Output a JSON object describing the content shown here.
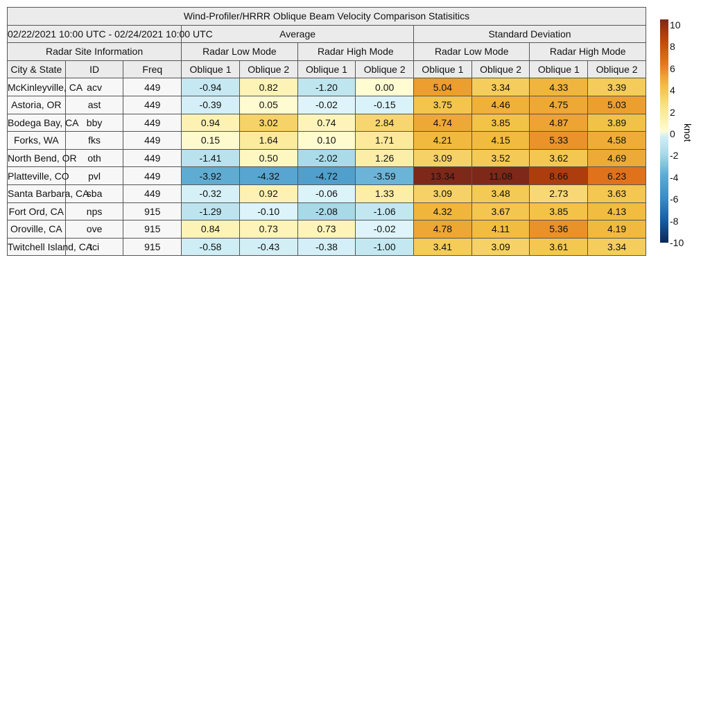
{
  "chart_data": {
    "type": "table",
    "title": "Wind-Profiler/HRRR Oblique Beam Velocity Comparison Statisitics",
    "period": "02/22/2021 10:00 UTC - 02/24/2021 10:00 UTC",
    "groups": [
      "Average",
      "Standard Deviation"
    ],
    "site_info_label": "Radar Site Information",
    "modes": [
      "Radar Low Mode",
      "Radar High Mode",
      "Radar Low Mode",
      "Radar High Mode"
    ],
    "columns": [
      "City & State",
      "ID",
      "Freq",
      "Oblique 1",
      "Oblique 2",
      "Oblique 1",
      "Oblique 2",
      "Oblique 1",
      "Oblique 2",
      "Oblique 1",
      "Oblique 2"
    ],
    "rows": [
      [
        "McKinleyville, CA",
        "acv",
        "449",
        "-0.94",
        "0.82",
        "-1.20",
        "0.00",
        "5.04",
        "3.34",
        "4.33",
        "3.39"
      ],
      [
        "Astoria, OR",
        "ast",
        "449",
        "-0.39",
        "0.05",
        "-0.02",
        "-0.15",
        "3.75",
        "4.46",
        "4.75",
        "5.03"
      ],
      [
        "Bodega Bay, CA",
        "bby",
        "449",
        "0.94",
        "3.02",
        "0.74",
        "2.84",
        "4.74",
        "3.85",
        "4.87",
        "3.89"
      ],
      [
        "Forks, WA",
        "fks",
        "449",
        "0.15",
        "1.64",
        "0.10",
        "1.71",
        "4.21",
        "4.15",
        "5.33",
        "4.58"
      ],
      [
        "North Bend, OR",
        "oth",
        "449",
        "-1.41",
        "0.50",
        "-2.02",
        "1.26",
        "3.09",
        "3.52",
        "3.62",
        "4.69"
      ],
      [
        "Platteville, CO",
        "pvl",
        "449",
        "-3.92",
        "-4.32",
        "-4.72",
        "-3.59",
        "13.34",
        "11.08",
        "8.66",
        "6.23"
      ],
      [
        "Santa Barbara, CA",
        "sba",
        "449",
        "-0.32",
        "0.92",
        "-0.06",
        "1.33",
        "3.09",
        "3.48",
        "2.73",
        "3.63"
      ],
      [
        "Fort Ord, CA",
        "nps",
        "915",
        "-1.29",
        "-0.10",
        "-2.08",
        "-1.06",
        "4.32",
        "3.67",
        "3.85",
        "4.13"
      ],
      [
        "Oroville, CA",
        "ove",
        "915",
        "0.84",
        "0.73",
        "0.73",
        "-0.02",
        "4.78",
        "4.11",
        "5.36",
        "4.19"
      ],
      [
        "Twitchell Island, CA",
        "tci",
        "915",
        "-0.58",
        "-0.43",
        "-0.38",
        "-1.00",
        "3.41",
        "3.09",
        "3.61",
        "3.34"
      ]
    ],
    "colorbar": {
      "label": "knot",
      "range": [
        -10,
        10
      ],
      "ticks": [
        "10",
        "8",
        "6",
        "4",
        "2",
        "0",
        "-2",
        "-4",
        "-6",
        "-8",
        "-10"
      ],
      "colormap": "diverging blue-white-yellow-orange-brown"
    }
  }
}
